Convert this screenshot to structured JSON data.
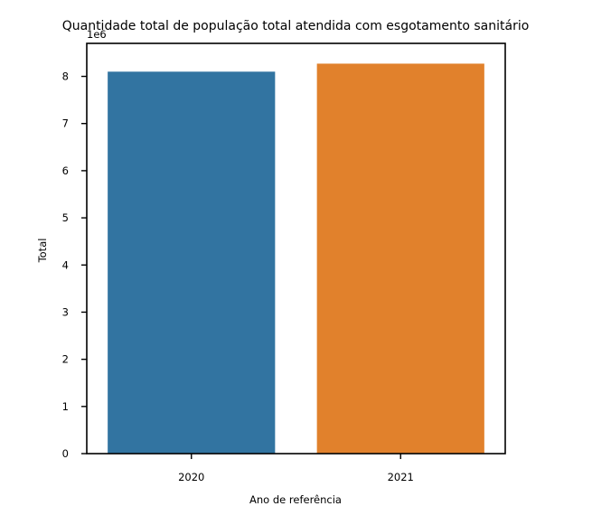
{
  "chart_data": {
    "type": "bar",
    "title": "Quantidade total de população total atendida com esgotamento sanitário",
    "xlabel": "Ano de referência",
    "ylabel": "Total",
    "y_offset_label": "1e6",
    "categories": [
      "2020",
      "2021"
    ],
    "values": [
      8100000,
      8270000
    ],
    "colors": [
      "#3274a1",
      "#e1812c"
    ],
    "ylim": [
      0,
      8700000
    ],
    "yticks": [
      0,
      1,
      2,
      3,
      4,
      5,
      6,
      7,
      8
    ],
    "ytick_scale": 1000000,
    "grid": false,
    "legend": "none"
  }
}
